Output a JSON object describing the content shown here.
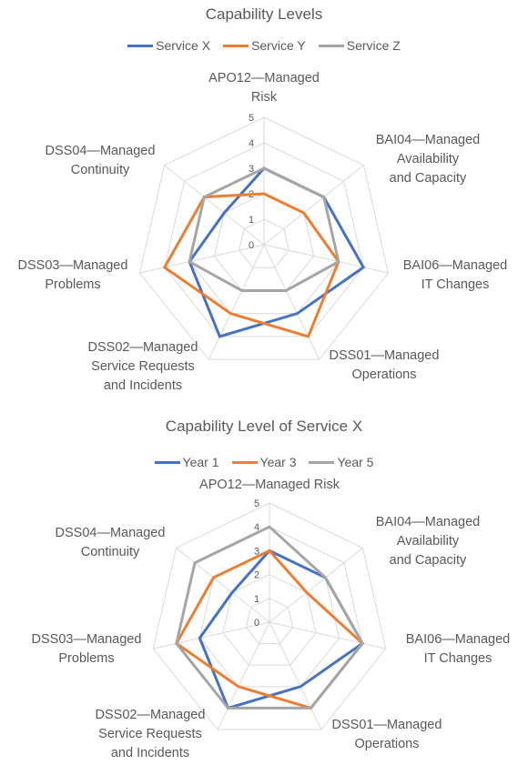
{
  "chart_data": [
    {
      "type": "radar",
      "title": "Capability Levels",
      "categories": [
        "APO12—Managed Risk",
        "BAI04—Managed Availability and Capacity",
        "BAI06—Managed IT Changes",
        "DSS01—Managed Operations",
        "DSS02—Managed Service Requests and Incidents",
        "DSS03—Managed Problems",
        "DSS04—Managed Continuity"
      ],
      "series": [
        {
          "name": "Service X",
          "color": "#4472C4",
          "values": [
            3,
            3,
            4,
            3,
            4,
            3,
            2
          ]
        },
        {
          "name": "Service Y",
          "color": "#ED7D31",
          "values": [
            2,
            2,
            3,
            4,
            3,
            4,
            3
          ]
        },
        {
          "name": "Service Z",
          "color": "#A5A5A5",
          "values": [
            3,
            3,
            3,
            2,
            2,
            3,
            3
          ]
        }
      ],
      "rlim": [
        0,
        5
      ],
      "ticks": [
        "0",
        "1",
        "2",
        "3",
        "4",
        "5"
      ],
      "legend": "top"
    },
    {
      "type": "radar",
      "title": "Capability Level of Service X",
      "categories": [
        "APO12—Managed Risk",
        "BAI04—Managed Availability and Capacity",
        "BAI06—Managed IT Changes",
        "DSS01—Managed Operations",
        "DSS02—Managed Service Requests and Incidents",
        "DSS03—Managed Problems",
        "DSS04—Managed Continuity"
      ],
      "series": [
        {
          "name": "Year 1",
          "color": "#4472C4",
          "values": [
            3,
            3,
            4,
            3,
            4,
            3,
            2
          ]
        },
        {
          "name": "Year 3",
          "color": "#ED7D31",
          "values": [
            3,
            2,
            4,
            4,
            3,
            4,
            3
          ]
        },
        {
          "name": "Year 5",
          "color": "#A5A5A5",
          "values": [
            4,
            3,
            4,
            4,
            4,
            4,
            4
          ]
        }
      ],
      "rlim": [
        0,
        5
      ],
      "ticks": [
        "0",
        "1",
        "2",
        "3",
        "4",
        "5"
      ],
      "legend": "top"
    }
  ]
}
